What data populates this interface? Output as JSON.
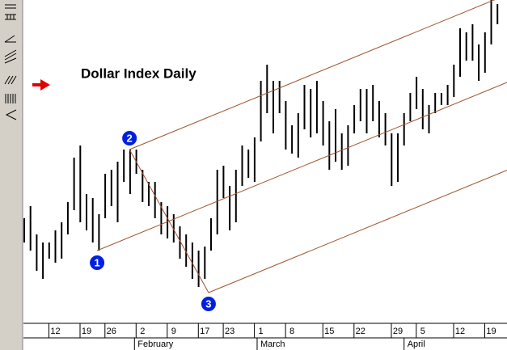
{
  "chart_data": {
    "type": "hilo",
    "title": "Dollar Index Daily",
    "xlim": [
      0,
      77
    ],
    "ylim": [
      0,
      400
    ],
    "xticks": [
      {
        "value": 5,
        "label": "12"
      },
      {
        "value": 10,
        "label": "19"
      },
      {
        "value": 14,
        "label": "26"
      },
      {
        "value": 19,
        "label": "2"
      },
      {
        "value": 24,
        "label": "9"
      },
      {
        "value": 29,
        "label": "17"
      },
      {
        "value": 33,
        "label": "23"
      },
      {
        "value": 38,
        "label": "1"
      },
      {
        "value": 43,
        "label": "8"
      },
      {
        "value": 49,
        "label": "15"
      },
      {
        "value": 54,
        "label": "22"
      },
      {
        "value": 60,
        "label": "29"
      },
      {
        "value": 64,
        "label": "5"
      },
      {
        "value": 70,
        "label": "12"
      },
      {
        "value": 75,
        "label": "19"
      }
    ],
    "months": [
      {
        "label": "February",
        "x": 17.7
      },
      {
        "label": "March",
        "x": 37.4
      },
      {
        "label": "April",
        "x": 61
      }
    ],
    "series": [
      {
        "color": "#000000",
        "high": [
          130,
          145,
          110,
          100,
          100,
          115,
          125,
          150,
          205,
          220,
          160,
          155,
          135,
          185,
          190,
          200,
          215,
          215,
          215,
          190,
          175,
          175,
          150,
          145,
          135,
          120,
          110,
          100,
          90,
          95,
          130,
          190,
          195,
          170,
          190,
          220,
          215,
          230,
          300,
          320,
          300,
          300,
          275,
          245,
          260,
          295,
          290,
          300,
          275,
          250,
          265,
          235,
          245,
          270,
          290,
          290,
          295,
          275,
          260,
          235,
          235,
          260,
          285,
          305,
          290,
          270,
          285,
          285,
          295,
          320,
          365,
          360,
          370,
          345,
          360,
          400,
          395
        ],
        "low": [
          100,
          90,
          65,
          55,
          80,
          75,
          80,
          110,
          140,
          125,
          115,
          100,
          90,
          130,
          145,
          125,
          175,
          160,
          185,
          150,
          145,
          130,
          110,
          105,
          100,
          80,
          70,
          55,
          45,
          55,
          90,
          110,
          155,
          115,
          125,
          170,
          180,
          175,
          225,
          260,
          235,
          260,
          215,
          210,
          205,
          240,
          230,
          235,
          220,
          190,
          200,
          190,
          195,
          235,
          250,
          235,
          250,
          230,
          220,
          170,
          175,
          220,
          250,
          265,
          240,
          235,
          260,
          270,
          270,
          280,
          305,
          325,
          325,
          300,
          310,
          345,
          370
        ]
      }
    ],
    "pitchfork": {
      "color": "#a0522d",
      "points": [
        {
          "label": "1",
          "x": 11.7,
          "y": 90
        },
        {
          "label": "2",
          "x": 16.9,
          "y": 215
        },
        {
          "label": "3",
          "x": 29.6,
          "y": 38
        }
      ]
    }
  }
}
